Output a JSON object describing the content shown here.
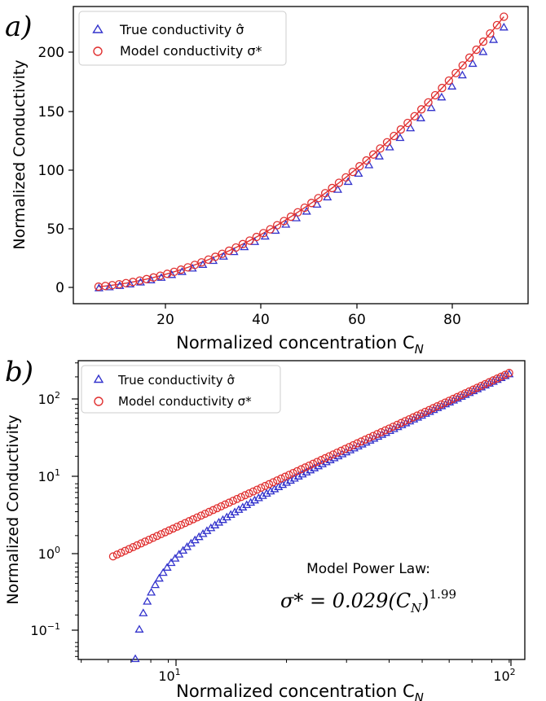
{
  "panels": [
    {
      "id": "a",
      "label": "a)",
      "xlabel": "Normalized concentration C",
      "xlabel_sub": "N",
      "ylabel": "Normalized Conductivity",
      "legend": [
        {
          "text": "True conductivity σ̂",
          "marker": "triangle",
          "color": "#3333cc"
        },
        {
          "text": "Model conductivity σ*",
          "marker": "circle",
          "color": "#e03030"
        }
      ],
      "xticks": [
        "20",
        "40",
        "60",
        "80"
      ],
      "yticks": [
        "0",
        "50",
        "100",
        "150",
        "200"
      ]
    },
    {
      "id": "b",
      "label": "b)",
      "xlabel": "Normalized concentration C",
      "xlabel_sub": "N",
      "ylabel": "Normalized Conductivity",
      "legend": [
        {
          "text": "True conductivity σ̂",
          "marker": "triangle",
          "color": "#3333cc"
        },
        {
          "text": "Model conductivity σ*",
          "marker": "circle",
          "color": "#e03030"
        }
      ],
      "xticks": [
        "10",
        "10"
      ],
      "xtick_exps": [
        "1",
        "2"
      ],
      "yticks": [
        "10",
        "10",
        "10",
        "10"
      ],
      "ytick_exps": [
        "−1",
        "0",
        "1",
        "2"
      ],
      "annotation_title": "Model Power Law:",
      "annotation_formula": "σ* = 0.029(C",
      "annotation_sub": "N",
      "annotation_exp": "1.99"
    }
  ],
  "chart_data": [
    {
      "type": "scatter",
      "panel": "a",
      "x_scale": "linear",
      "y_scale": "linear",
      "xlim": [
        1,
        95
      ],
      "ylim": [
        -13,
        233
      ],
      "series": [
        {
          "name": "True conductivity σ̂",
          "marker": "triangle",
          "color": "#3333cc",
          "coefficient": 0.0256,
          "exponent": 2.01,
          "offset": -1.3,
          "x_start": 6.3,
          "x_end": 90,
          "n_points": 40
        },
        {
          "name": "Model conductivity σ*",
          "marker": "circle",
          "color": "#e03030",
          "coefficient": 0.029,
          "exponent": 1.99,
          "x_start": 6.2,
          "x_end": 90,
          "n_points": 60,
          "line": true
        }
      ]
    },
    {
      "type": "scatter",
      "panel": "b",
      "x_scale": "log",
      "y_scale": "log",
      "xlim": [
        4.9,
        100
      ],
      "ylim": [
        0.055,
        320
      ],
      "series": [
        {
          "name": "True conductivity σ̂",
          "marker": "triangle",
          "color": "#3333cc",
          "coefficient": 0.0256,
          "exponent": 2.01,
          "offset": -1.3,
          "x_start": 6.3,
          "x_end": 90,
          "n_points": 100
        },
        {
          "name": "Model conductivity σ*",
          "marker": "circle",
          "color": "#e03030",
          "coefficient": 0.029,
          "exponent": 1.99,
          "x_start": 6.2,
          "x_end": 90,
          "n_points": 100
        }
      ]
    }
  ]
}
